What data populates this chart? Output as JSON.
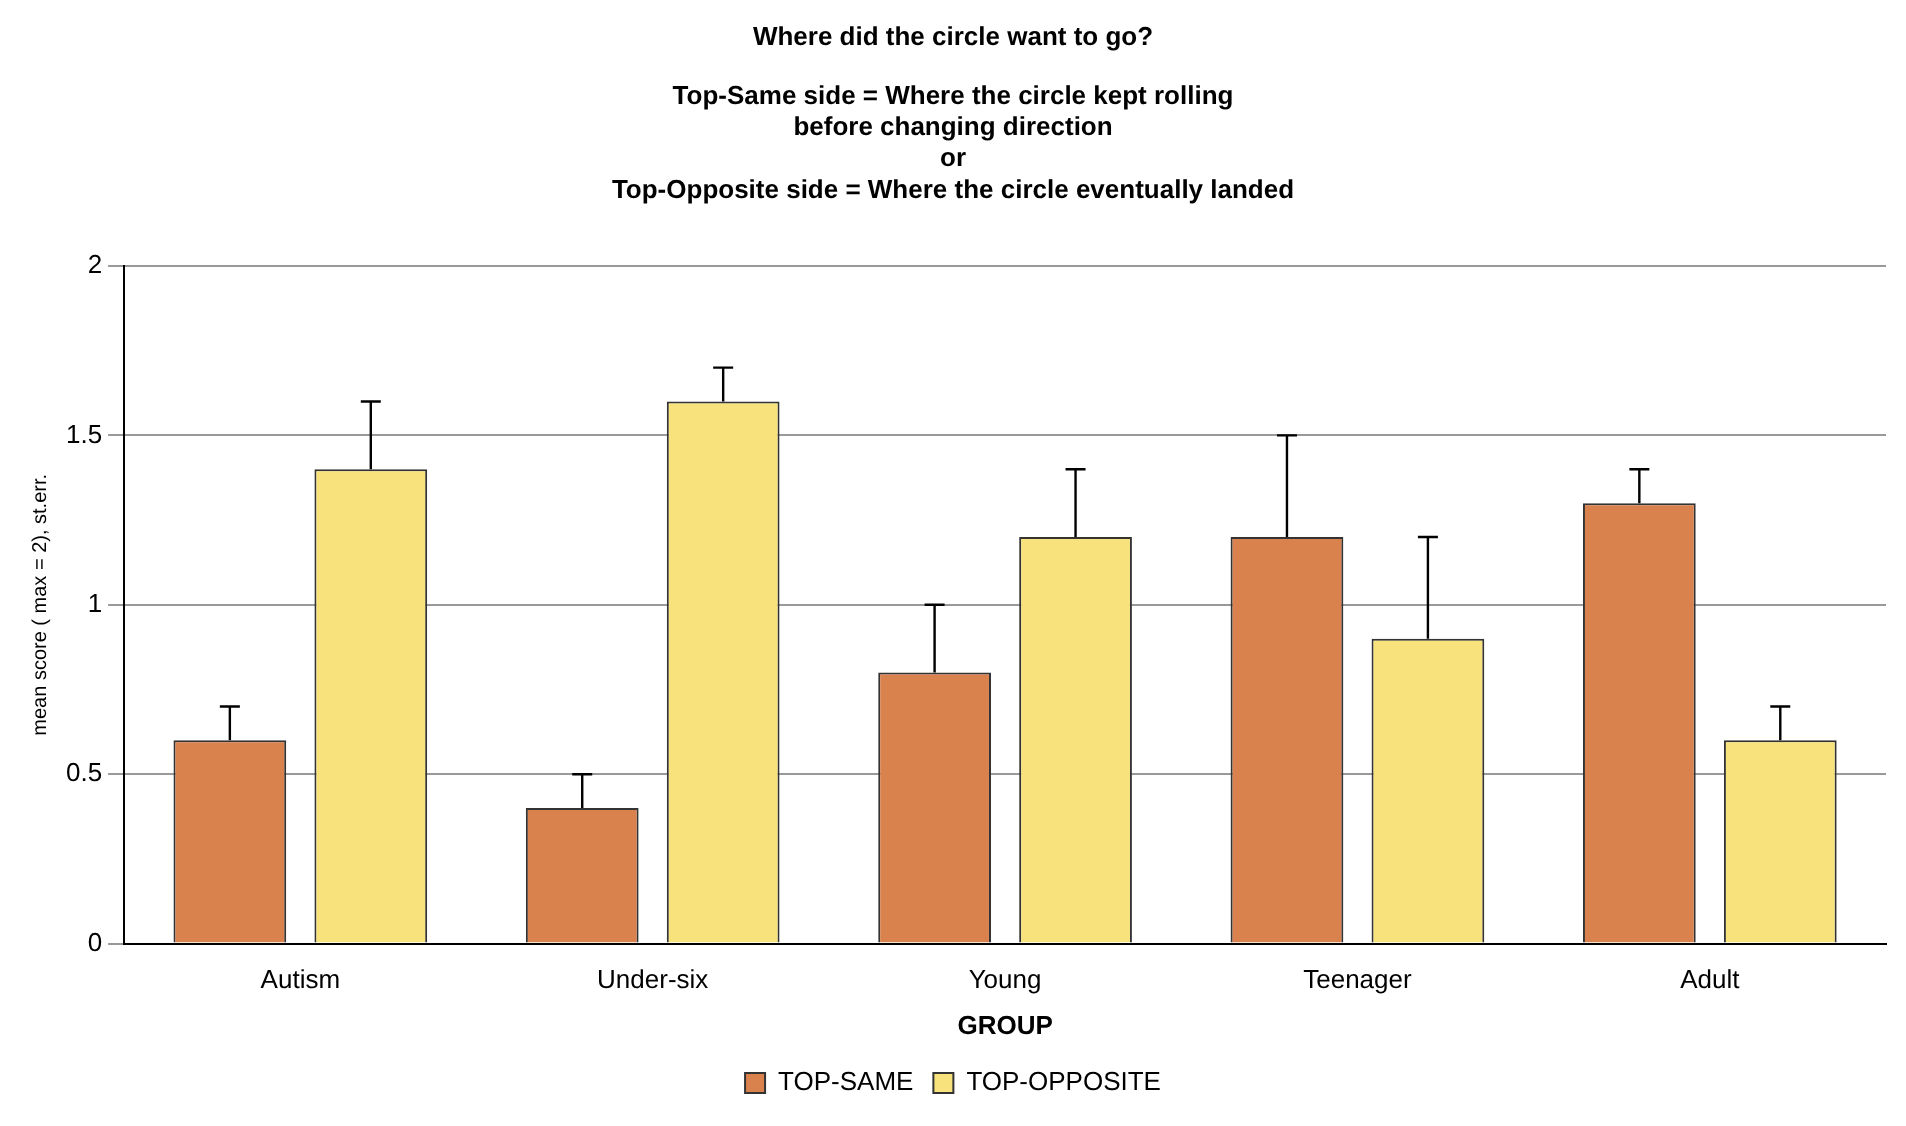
{
  "chart_data": {
    "type": "bar",
    "title": "Where did the circle want to go?",
    "subtitle": "Top-Same side = Where the circle kept rolling\nbefore changing direction\nor\nTop-Opposite side = Where the circle eventually landed",
    "xlabel": "GROUP",
    "ylabel": "mean score ( max = 2), st.err.",
    "categories": [
      "Autism",
      "Under-six",
      "Young",
      "Teenager",
      "Adult"
    ],
    "series": [
      {
        "name": "TOP-SAME",
        "color": "#d9824e",
        "values": [
          0.6,
          0.4,
          0.8,
          1.2,
          1.3
        ],
        "errors": [
          [
            0.6,
            0.7
          ],
          [
            0.4,
            0.5
          ],
          [
            0.8,
            1.0
          ],
          [
            1.2,
            1.5
          ],
          [
            1.3,
            1.4
          ]
        ]
      },
      {
        "name": "TOP-OPPOSITE",
        "color": "#f7e27c",
        "values": [
          1.4,
          1.6,
          1.2,
          0.9,
          0.6
        ],
        "errors": [
          [
            1.4,
            1.6
          ],
          [
            1.6,
            1.7
          ],
          [
            1.2,
            1.4
          ],
          [
            0.9,
            1.2
          ],
          [
            0.6,
            0.7
          ]
        ]
      }
    ],
    "ylim": [
      0,
      2
    ],
    "yticks": [
      0,
      0.5,
      1,
      1.5,
      2
    ],
    "grid": "y",
    "legend": "bottom"
  }
}
